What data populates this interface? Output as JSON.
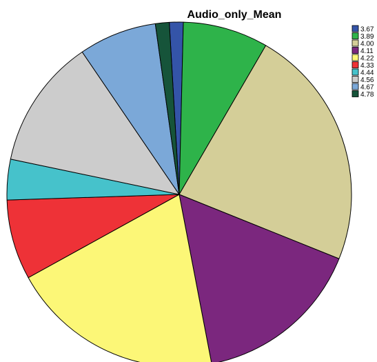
{
  "chart_data": {
    "type": "pie",
    "title": "Audio_only_Mean",
    "legend_position": "top-right",
    "slices": [
      {
        "label": "3.67",
        "value": 1.3,
        "color": "#3454A8"
      },
      {
        "label": "3.89",
        "value": 8.0,
        "color": "#2EB34A"
      },
      {
        "label": "4.00",
        "value": 22.7,
        "color": "#D4CE98"
      },
      {
        "label": "4.11",
        "value": 15.9,
        "color": "#7B277E"
      },
      {
        "label": "4.22",
        "value": 20.0,
        "color": "#FCF777"
      },
      {
        "label": "4.33",
        "value": 7.5,
        "color": "#EE3237"
      },
      {
        "label": "4.44",
        "value": 3.8,
        "color": "#46C2CB"
      },
      {
        "label": "4.56",
        "value": 12.2,
        "color": "#CCCCCC"
      },
      {
        "label": "4.67",
        "value": 7.3,
        "color": "#7BA8D8"
      },
      {
        "label": "4.78",
        "value": 1.3,
        "color": "#16543A"
      }
    ]
  }
}
